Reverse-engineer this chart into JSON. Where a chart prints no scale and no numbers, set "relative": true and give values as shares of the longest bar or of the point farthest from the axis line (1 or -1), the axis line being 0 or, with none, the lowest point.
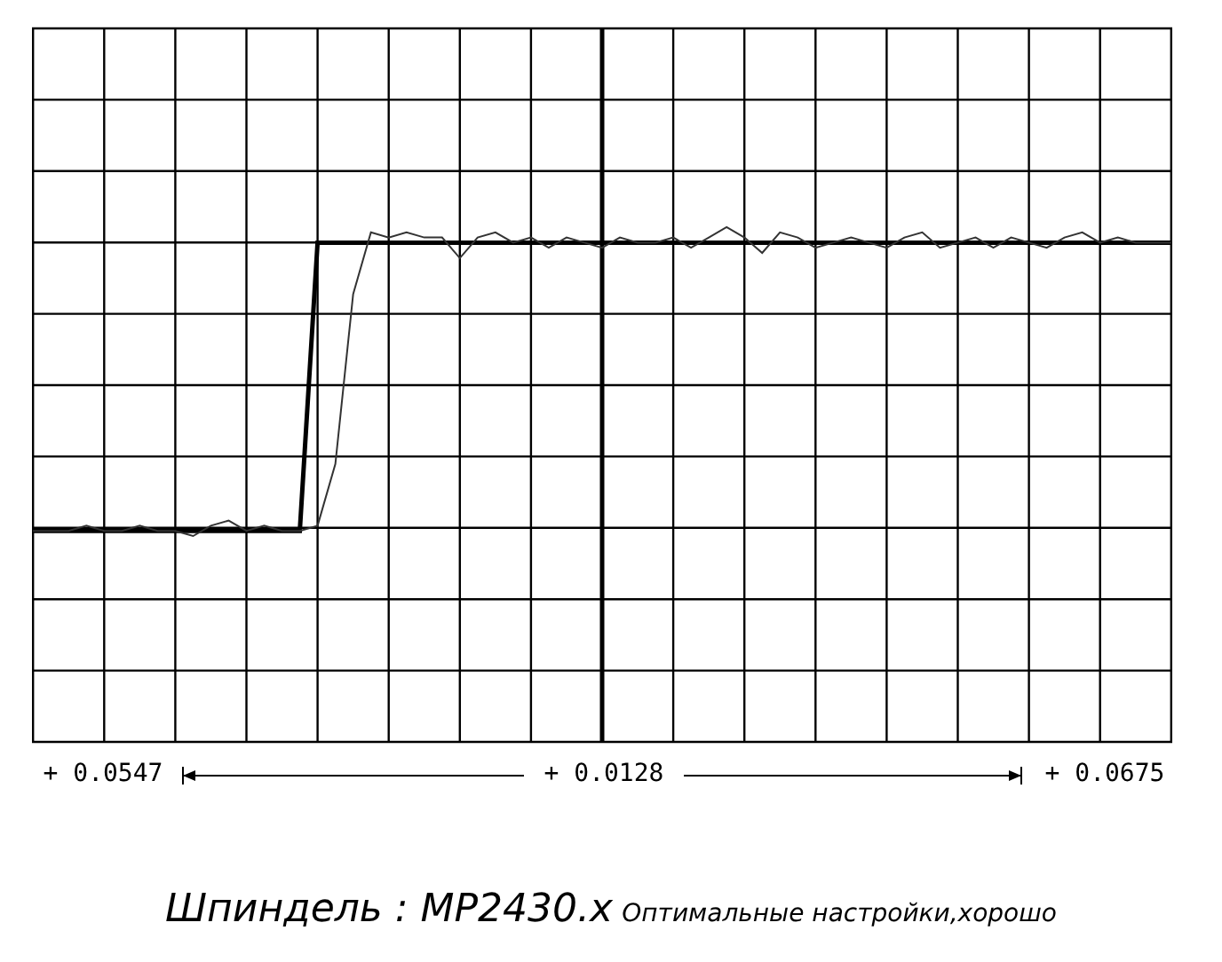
{
  "chart_data": {
    "type": "line",
    "title": "Шпиндель : MP2430.x",
    "subtitle": "Оптимальные настройки,хорошо",
    "relative": true,
    "grid": true,
    "annotations": [
      "+ 0.0547",
      "+ 0.0128",
      "+ 0.0675"
    ],
    "categories": [
      null,
      null,
      null,
      null,
      null,
      null,
      null,
      null,
      null,
      null,
      null,
      null,
      null,
      null,
      null,
      null,
      null,
      null,
      null,
      null,
      null,
      null,
      null,
      null,
      null,
      null,
      null,
      null,
      null,
      null,
      null,
      null,
      null,
      null,
      null,
      null,
      null,
      null,
      null,
      null,
      null,
      null,
      null,
      null,
      null,
      null,
      null,
      null,
      null,
      null,
      null,
      null,
      null,
      null,
      null,
      null,
      null,
      null,
      null,
      null,
      null,
      null,
      null,
      null,
      null
    ],
    "series": [
      {
        "color": "#000000",
        "values": [
          0.41,
          0.41,
          0.41,
          0.41,
          0.41,
          0.41,
          0.41,
          0.41,
          0.41,
          0.41,
          0.41,
          0.41,
          0.41,
          0.41,
          0.41,
          0.41,
          0.97,
          0.97,
          0.97,
          0.97,
          0.97,
          0.97,
          0.97,
          0.97,
          0.97,
          0.97,
          0.97,
          0.97,
          0.97,
          0.97,
          0.97,
          0.97,
          0.97,
          0.97,
          0.97,
          0.97,
          0.97,
          0.97,
          0.97,
          0.97,
          0.97,
          0.97,
          0.97,
          0.97,
          0.97,
          0.97,
          0.97,
          0.97,
          0.97,
          0.97,
          0.97,
          0.97,
          0.97,
          0.97,
          0.97,
          0.97,
          0.97,
          0.97,
          0.97,
          0.97,
          0.97,
          0.97,
          0.97,
          0.97,
          0.97
        ]
      },
      {
        "color": "#333333",
        "values": [
          0.41,
          0.41,
          0.41,
          0.42,
          0.41,
          0.41,
          0.42,
          0.41,
          0.41,
          0.4,
          0.42,
          0.43,
          0.41,
          0.42,
          0.41,
          0.41,
          0.42,
          0.54,
          0.87,
          0.99,
          0.98,
          0.99,
          0.98,
          0.98,
          0.94,
          0.98,
          0.99,
          0.97,
          0.98,
          0.96,
          0.98,
          0.97,
          0.96,
          0.98,
          0.97,
          0.97,
          0.98,
          0.96,
          0.98,
          1,
          0.98,
          0.95,
          0.99,
          0.98,
          0.96,
          0.97,
          0.98,
          0.97,
          0.96,
          0.98,
          0.99,
          0.96,
          0.97,
          0.98,
          0.96,
          0.98,
          0.97,
          0.96,
          0.98,
          0.99,
          0.97,
          0.98,
          0.97,
          0.97,
          0.97
        ]
      }
    ]
  }
}
